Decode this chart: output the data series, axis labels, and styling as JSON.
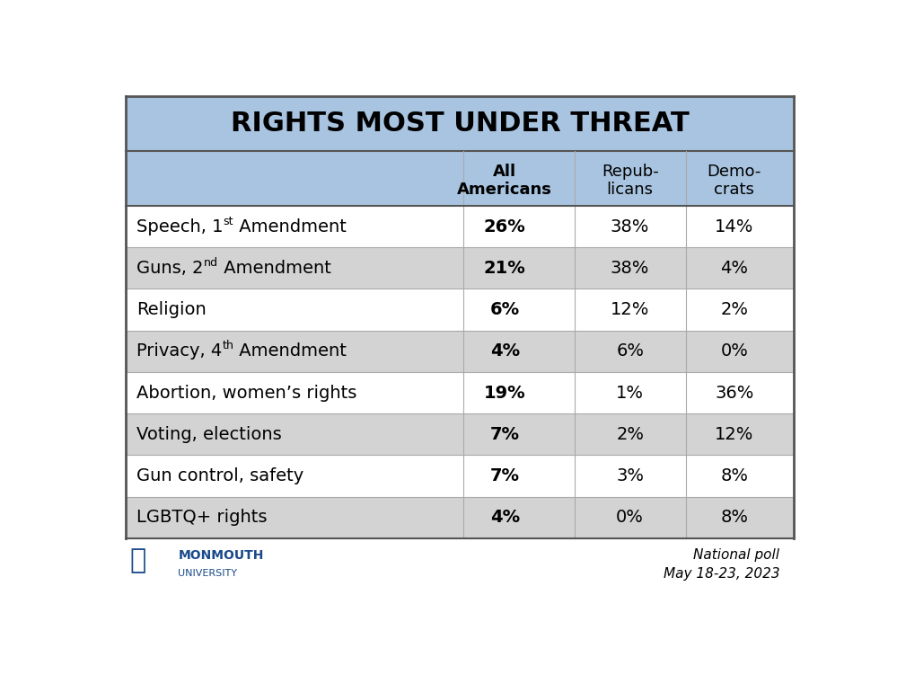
{
  "title": "RIGHTS MOST UNDER THREAT",
  "col_headers": [
    [
      "All",
      "Americans"
    ],
    [
      "Repub-",
      "licans"
    ],
    [
      "Demo-",
      "crats"
    ]
  ],
  "rows": [
    {
      "all": "26%",
      "rep": "38%",
      "dem": "14%",
      "superscript": true,
      "sup_text": "st",
      "base_text": "Speech, 1",
      "after_text": " Amendment"
    },
    {
      "all": "21%",
      "rep": "38%",
      "dem": "4%",
      "superscript": true,
      "sup_text": "nd",
      "base_text": "Guns, 2",
      "after_text": " Amendment"
    },
    {
      "all": "6%",
      "rep": "12%",
      "dem": "2%",
      "superscript": false,
      "label": "Religion"
    },
    {
      "all": "4%",
      "rep": "6%",
      "dem": "0%",
      "superscript": true,
      "sup_text": "th",
      "base_text": "Privacy, 4",
      "after_text": " Amendment"
    },
    {
      "all": "19%",
      "rep": "1%",
      "dem": "36%",
      "superscript": false,
      "label": "Abortion, women’s rights"
    },
    {
      "all": "7%",
      "rep": "2%",
      "dem": "12%",
      "superscript": false,
      "label": "Voting, elections"
    },
    {
      "all": "7%",
      "rep": "3%",
      "dem": "8%",
      "superscript": false,
      "label": "Gun control, safety"
    },
    {
      "all": "4%",
      "rep": "0%",
      "dem": "8%",
      "superscript": false,
      "label": "LGBTQ+ rights"
    }
  ],
  "header_bg": "#a8c4e0",
  "row_bg_odd": "#ffffff",
  "row_bg_even": "#d3d3d3",
  "title_fontsize": 22,
  "header_fontsize": 13,
  "row_fontsize": 14,
  "outer_bg": "#ffffff"
}
